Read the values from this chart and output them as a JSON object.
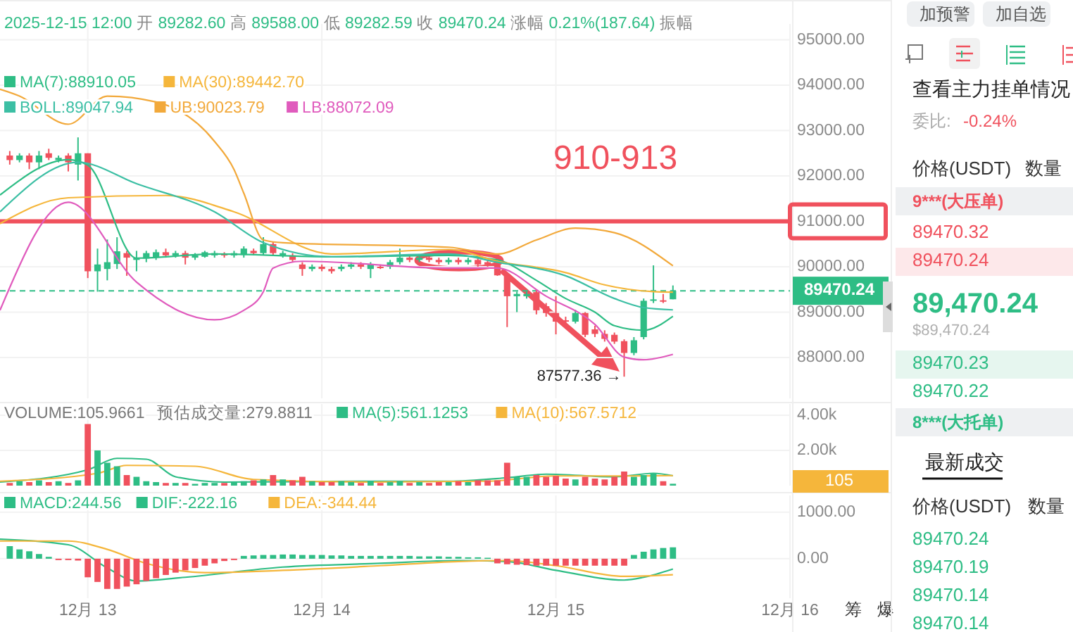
{
  "chart_data": [
    {
      "type": "candlestick",
      "subtitle": "2025-12-15 12:00 开 89282.60 高 89588.00 低 89282.59 收 89470.24 涨幅 0.21%(187.64) 振幅",
      "x": [
        "2025-12-12T16:00",
        "2025-12-12T17:00",
        "2025-12-12T18:00",
        "2025-12-12T19:00",
        "2025-12-12T20:00",
        "2025-12-12T21:00",
        "2025-12-12T22:00",
        "2025-12-12T23:00",
        "2025-12-13T00:00",
        "2025-12-13T01:00",
        "2025-12-13T02:00",
        "2025-12-13T03:00",
        "2025-12-13T04:00",
        "2025-12-13T05:00",
        "2025-12-13T06:00",
        "2025-12-13T07:00",
        "2025-12-13T08:00",
        "2025-12-13T09:00",
        "2025-12-13T10:00",
        "2025-12-13T11:00",
        "2025-12-13T12:00",
        "2025-12-13T13:00",
        "2025-12-13T14:00",
        "2025-12-13T15:00",
        "2025-12-13T16:00",
        "2025-12-13T17:00",
        "2025-12-13T18:00",
        "2025-12-13T19:00",
        "2025-12-13T20:00",
        "2025-12-13T21:00",
        "2025-12-13T22:00",
        "2025-12-13T23:00",
        "2025-12-14T00:00",
        "2025-12-14T01:00",
        "2025-12-14T02:00",
        "2025-12-14T03:00",
        "2025-12-14T04:00",
        "2025-12-14T05:00",
        "2025-12-14T06:00",
        "2025-12-14T07:00",
        "2025-12-14T08:00",
        "2025-12-14T09:00",
        "2025-12-14T10:00",
        "2025-12-14T11:00",
        "2025-12-14T12:00",
        "2025-12-14T13:00",
        "2025-12-14T14:00",
        "2025-12-14T15:00",
        "2025-12-14T16:00",
        "2025-12-14T17:00",
        "2025-12-14T18:00",
        "2025-12-14T19:00",
        "2025-12-14T20:00",
        "2025-12-14T21:00",
        "2025-12-14T22:00",
        "2025-12-14T23:00",
        "2025-12-15T00:00",
        "2025-12-15T01:00",
        "2025-12-15T02:00",
        "2025-12-15T03:00",
        "2025-12-15T04:00",
        "2025-12-15T05:00",
        "2025-12-15T06:00",
        "2025-12-15T07:00",
        "2025-12-15T08:00",
        "2025-12-15T09:00",
        "2025-12-15T10:00",
        "2025-12-15T11:00",
        "2025-12-15T12:00"
      ],
      "ohlc": [
        [
          92450,
          92550,
          92250,
          92350
        ],
        [
          92350,
          92500,
          92300,
          92450
        ],
        [
          92450,
          92500,
          92150,
          92300
        ],
        [
          92300,
          92550,
          92150,
          92450
        ],
        [
          92500,
          92600,
          92350,
          92400
        ],
        [
          92350,
          92450,
          92300,
          92400
        ],
        [
          92450,
          92500,
          92100,
          92300
        ],
        [
          92250,
          92850,
          91900,
          92500
        ],
        [
          92500,
          92500,
          89750,
          89900
        ],
        [
          89900,
          90400,
          89450,
          90050
        ],
        [
          89950,
          90600,
          89700,
          90100
        ],
        [
          90060,
          90650,
          89950,
          90340
        ],
        [
          90300,
          90350,
          89800,
          90200
        ],
        [
          90150,
          90350,
          89900,
          90200
        ],
        [
          90180,
          90350,
          90100,
          90300
        ],
        [
          90200,
          90380,
          90150,
          90320
        ],
        [
          90320,
          90400,
          90200,
          90250
        ],
        [
          90250,
          90350,
          90200,
          90300
        ],
        [
          90300,
          90350,
          90050,
          90200
        ],
        [
          90200,
          90300,
          90150,
          90250
        ],
        [
          90220,
          90350,
          90200,
          90320
        ],
        [
          90250,
          90350,
          90200,
          90300
        ],
        [
          90280,
          90320,
          90200,
          90250
        ],
        [
          90250,
          90350,
          90200,
          90300
        ],
        [
          90260,
          90450,
          90200,
          90400
        ],
        [
          90350,
          90400,
          90250,
          90300
        ],
        [
          90300,
          90650,
          90250,
          90500
        ],
        [
          90500,
          90550,
          90250,
          90300
        ],
        [
          90250,
          90350,
          90200,
          90300
        ],
        [
          90250,
          90300,
          90100,
          90150
        ],
        [
          90050,
          90100,
          89800,
          89950
        ],
        [
          89950,
          90050,
          89900,
          90000
        ],
        [
          90000,
          90050,
          89900,
          89950
        ],
        [
          89950,
          90000,
          89850,
          89900
        ],
        [
          89950,
          90050,
          89900,
          90000
        ],
        [
          90000,
          90100,
          89950,
          90050
        ],
        [
          90050,
          90100,
          89950,
          90000
        ],
        [
          89950,
          90100,
          89750,
          90050
        ],
        [
          90000,
          90050,
          89950,
          89980
        ],
        [
          90000,
          90150,
          89950,
          90100
        ],
        [
          90100,
          90400,
          90050,
          90200
        ],
        [
          90200,
          90250,
          90100,
          90150
        ],
        [
          90150,
          90250,
          90100,
          90200
        ],
        [
          90200,
          90250,
          90100,
          90150
        ],
        [
          90150,
          90200,
          90050,
          90100
        ],
        [
          90100,
          90200,
          90050,
          90150
        ],
        [
          90150,
          90200,
          90050,
          90100
        ],
        [
          90100,
          90200,
          90050,
          90150
        ],
        [
          90150,
          90200,
          90000,
          90050
        ],
        [
          90100,
          90150,
          90000,
          90050
        ],
        [
          90030,
          90100,
          89800,
          89810
        ],
        [
          89810,
          89850,
          88670,
          89350
        ],
        [
          89350,
          89450,
          89000,
          89400
        ],
        [
          89350,
          89450,
          89300,
          89400
        ],
        [
          89440,
          89500,
          88950,
          89040
        ],
        [
          89130,
          89200,
          88900,
          88980
        ],
        [
          88980,
          89350,
          88510,
          88790
        ],
        [
          88820,
          88900,
          88700,
          88790
        ],
        [
          88790,
          89050,
          88750,
          88980
        ],
        [
          88980,
          89000,
          88450,
          88500
        ],
        [
          88620,
          88700,
          88450,
          88520
        ],
        [
          88520,
          88600,
          88350,
          88410
        ],
        [
          88500,
          88550,
          88300,
          88350
        ],
        [
          88360,
          88400,
          87577.36,
          88100
        ],
        [
          88100,
          88450,
          88050,
          88380
        ],
        [
          88450,
          89300,
          88400,
          89250
        ],
        [
          89250,
          90030,
          89200,
          89280
        ],
        [
          89260,
          89400,
          89200,
          89230
        ],
        [
          89282.6,
          89588.0,
          89282.59,
          89470.24
        ]
      ],
      "series": [
        {
          "type": "line",
          "name": "MA(7):88910.05",
          "color": "#2ebd85",
          "x": [
            "2025-12-12T15:00",
            "2025-12-12T22:00",
            "2025-12-13T00:00",
            "2025-12-13T05:00",
            "2025-12-13T13:00",
            "2025-12-14T01:00",
            "2025-12-14T13:00",
            "2025-12-14T18:00",
            "2025-12-14T22:00",
            "2025-12-15T01:00",
            "2025-12-15T04:00",
            "2025-12-15T06:00",
            "2025-12-15T09:00",
            "2025-12-15T12:00"
          ],
          "values": [
            91580,
            92360,
            92240,
            90190,
            90280,
            90220,
            90250,
            90150,
            89700,
            89300,
            89000,
            88700,
            88600,
            88910
          ]
        },
        {
          "type": "line",
          "name": "MA(30):89442.70",
          "color": "#f5b63b",
          "x": [
            "2025-12-12T15:00",
            "2025-12-12T22:00",
            "2025-12-13T08:00",
            "2025-12-13T15:00",
            "2025-12-14T01:00",
            "2025-12-14T13:00",
            "2025-12-14T18:00",
            "2025-12-15T01:00",
            "2025-12-15T05:00",
            "2025-12-15T10:00",
            "2025-12-15T12:00"
          ],
          "values": [
            90950,
            91520,
            91570,
            91210,
            90280,
            90380,
            90120,
            89870,
            89600,
            89450,
            89440
          ]
        },
        {
          "type": "line",
          "name": "BOLL:89047.94",
          "color": "#3cbfa4",
          "x": [
            "2025-12-12T15:00",
            "2025-12-12T23:00",
            "2025-12-13T05:00",
            "2025-12-13T13:00",
            "2025-12-13T18:00",
            "2025-12-14T01:00",
            "2025-12-14T13:00",
            "2025-12-14T18:00",
            "2025-12-15T01:00",
            "2025-12-15T06:00",
            "2025-12-15T09:00",
            "2025-12-15T12:00"
          ],
          "values": [
            91210,
            92300,
            91830,
            91210,
            90530,
            90220,
            90280,
            90100,
            89800,
            89300,
            89100,
            89050
          ]
        },
        {
          "type": "line",
          "name": "UB:90023.79",
          "color": "#f2a93b",
          "x": [
            "2025-12-12T15:00",
            "2025-12-12T17:00",
            "2025-12-12T22:00",
            "2025-12-13T02:00",
            "2025-12-13T07:00",
            "2025-12-13T13:00",
            "2025-12-13T15:00",
            "2025-12-13T16:00",
            "2025-12-13T18:00",
            "2025-12-13T20:00",
            "2025-12-14T13:00",
            "2025-12-14T18:00",
            "2025-12-14T22:00",
            "2025-12-15T02:00",
            "2025-12-15T06:00",
            "2025-12-15T12:00"
          ],
          "values": [
            93910,
            93760,
            93140,
            93760,
            93630,
            92760,
            92140,
            91620,
            90590,
            90530,
            90430,
            90280,
            90590,
            90850,
            90750,
            90020
          ]
        },
        {
          "type": "line",
          "name": "LB:88072.09",
          "color": "#e05bbd",
          "x": [
            "2025-12-12T15:00",
            "2025-12-12T22:00",
            "2025-12-13T05:00",
            "2025-12-13T13:00",
            "2025-12-13T16:00",
            "2025-12-13T18:00",
            "2025-12-13T19:00",
            "2025-12-13T22:00",
            "2025-12-14T13:00",
            "2025-12-14T18:00",
            "2025-12-14T23:00",
            "2025-12-15T04:00",
            "2025-12-15T07:00",
            "2025-12-15T09:00",
            "2025-12-15T12:00"
          ],
          "values": [
            89040,
            91420,
            89660,
            88830,
            89040,
            89450,
            89970,
            90120,
            89970,
            89970,
            89350,
            88730,
            88010,
            87950,
            88070
          ]
        }
      ],
      "xlim": [
        "2025-12-12T15:00",
        "2025-12-16T00:00"
      ],
      "xticks": [
        {
          "value": "2025-12-13",
          "label": null
        },
        {
          "value": "2025-12-14",
          "label": null
        },
        {
          "value": "2025-12-15",
          "label": null
        },
        {
          "value": "2025-12-16",
          "label": null
        }
      ],
      "ylim": [
        87100,
        95350
      ],
      "yticks": [
        {
          "value": 88000,
          "label": "88000.00"
        },
        {
          "value": 89000,
          "label": "89000.00"
        },
        {
          "value": 90000,
          "label": "90000.00"
        },
        {
          "value": 91000,
          "label": "91000.00"
        },
        {
          "value": 92000,
          "label": "92000.00"
        },
        {
          "value": 93000,
          "label": "93000.00"
        },
        {
          "value": 94000,
          "label": "94000.00"
        },
        {
          "value": 95000,
          "label": "95000.00"
        }
      ],
      "ref_lines": [
        {
          "axis": "y",
          "value": 91000,
          "color": "#f0515d",
          "line_style": "solid"
        },
        {
          "axis": "y",
          "value": 89470.24,
          "label": "89470.24",
          "color": "#2ebd85",
          "line_style": "dashed"
        }
      ],
      "annotations": [
        "910-913",
        {
          "text": "87577.36 →",
          "x": "2025-12-15T07:00",
          "y": 87577.36
        }
      ],
      "grid": true,
      "legend": "top left",
      "tick_labels": "y"
    },
    {
      "type": "bar",
      "x": [
        "2025-12-12T16:00",
        "2025-12-12T17:00",
        "2025-12-12T18:00",
        "2025-12-12T19:00",
        "2025-12-12T20:00",
        "2025-12-12T21:00",
        "2025-12-12T22:00",
        "2025-12-12T23:00",
        "2025-12-13T00:00",
        "2025-12-13T01:00",
        "2025-12-13T02:00",
        "2025-12-13T03:00",
        "2025-12-13T04:00",
        "2025-12-13T05:00",
        "2025-12-13T06:00",
        "2025-12-13T07:00",
        "2025-12-13T08:00",
        "2025-12-13T09:00",
        "2025-12-13T10:00",
        "2025-12-13T11:00",
        "2025-12-13T12:00",
        "2025-12-13T13:00",
        "2025-12-13T14:00",
        "2025-12-13T15:00",
        "2025-12-13T16:00",
        "2025-12-13T17:00",
        "2025-12-13T18:00",
        "2025-12-13T19:00",
        "2025-12-13T20:00",
        "2025-12-13T21:00",
        "2025-12-13T22:00",
        "2025-12-13T23:00",
        "2025-12-14T00:00",
        "2025-12-14T01:00",
        "2025-12-14T02:00",
        "2025-12-14T03:00",
        "2025-12-14T04:00",
        "2025-12-14T05:00",
        "2025-12-14T06:00",
        "2025-12-14T07:00",
        "2025-12-14T08:00",
        "2025-12-14T09:00",
        "2025-12-14T10:00",
        "2025-12-14T11:00",
        "2025-12-14T12:00",
        "2025-12-14T13:00",
        "2025-12-14T14:00",
        "2025-12-14T15:00",
        "2025-12-14T16:00",
        "2025-12-14T17:00",
        "2025-12-14T18:00",
        "2025-12-14T19:00",
        "2025-12-14T20:00",
        "2025-12-14T21:00",
        "2025-12-14T22:00",
        "2025-12-14T23:00",
        "2025-12-15T00:00",
        "2025-12-15T01:00",
        "2025-12-15T02:00",
        "2025-12-15T03:00",
        "2025-12-15T04:00",
        "2025-12-15T05:00",
        "2025-12-15T06:00",
        "2025-12-15T07:00",
        "2025-12-15T08:00",
        "2025-12-15T09:00",
        "2025-12-15T10:00",
        "2025-12-15T11:00",
        "2025-12-15T12:00"
      ],
      "series": [
        {
          "type": "bar",
          "values": [
            150,
            250,
            200,
            300,
            200,
            250,
            150,
            300,
            3500,
            2000,
            1300,
            1100,
            600,
            500,
            250,
            200,
            150,
            150,
            150,
            100,
            150,
            150,
            150,
            200,
            250,
            300,
            350,
            600,
            350,
            300,
            500,
            250,
            200,
            200,
            250,
            200,
            150,
            250,
            150,
            200,
            250,
            150,
            200,
            150,
            200,
            200,
            250,
            200,
            300,
            300,
            300,
            1300,
            500,
            500,
            600,
            500,
            550,
            400,
            350,
            500,
            400,
            350,
            500,
            800,
            500,
            600,
            700,
            250,
            106
          ],
          "colors": [
            "#f0515d",
            "#2ebd85",
            "#f0515d",
            "#2ebd85",
            "#f0515d",
            "#2ebd85",
            "#f0515d",
            "#2ebd85",
            "#f0515d",
            "#2ebd85",
            "#2ebd85",
            "#2ebd85",
            "#f0515d",
            "#2ebd85",
            "#2ebd85",
            "#2ebd85",
            "#f0515d",
            "#2ebd85",
            "#f0515d",
            "#2ebd85",
            "#2ebd85",
            "#2ebd85",
            "#f0515d",
            "#2ebd85",
            "#2ebd85",
            "#f0515d",
            "#2ebd85",
            "#f0515d",
            "#2ebd85",
            "#f0515d",
            "#f0515d",
            "#2ebd85",
            "#f0515d",
            "#f0515d",
            "#2ebd85",
            "#2ebd85",
            "#f0515d",
            "#2ebd85",
            "#f0515d",
            "#2ebd85",
            "#2ebd85",
            "#f0515d",
            "#2ebd85",
            "#f0515d",
            "#f0515d",
            "#2ebd85",
            "#f0515d",
            "#2ebd85",
            "#f0515d",
            "#f0515d",
            "#f0515d",
            "#f0515d",
            "#2ebd85",
            "#2ebd85",
            "#f0515d",
            "#f0515d",
            "#f0515d",
            "#f0515d",
            "#2ebd85",
            "#f0515d",
            "#f0515d",
            "#f0515d",
            "#f0515d",
            "#f0515d",
            "#2ebd85",
            "#2ebd85",
            "#2ebd85",
            "#f0515d",
            "#2ebd85"
          ]
        },
        {
          "type": "line",
          "name": "MA(5):561.1253",
          "color": "#2ebd85",
          "x": [
            "2025-12-12T15:00",
            "2025-12-13T00:00",
            "2025-12-13T03:00",
            "2025-12-13T06:00",
            "2025-12-13T09:00",
            "2025-12-13T14:00",
            "2025-12-14T04:00",
            "2025-12-14T13:00",
            "2025-12-14T19:00",
            "2025-12-14T23:00",
            "2025-12-15T06:00",
            "2025-12-15T10:00",
            "2025-12-15T12:00"
          ],
          "values": [
            200,
            900,
            1550,
            1500,
            500,
            200,
            250,
            250,
            450,
            650,
            500,
            700,
            560
          ]
        },
        {
          "type": "line",
          "name": "MA(10):567.5712",
          "color": "#f5b63b",
          "x": [
            "2025-12-12T15:00",
            "2025-12-13T01:00",
            "2025-12-13T04:00",
            "2025-12-13T11:00",
            "2025-12-13T17:00",
            "2025-12-14T05:00",
            "2025-12-14T17:00",
            "2025-12-15T00:00",
            "2025-12-15T08:00",
            "2025-12-15T12:00"
          ],
          "values": [
            250,
            700,
            1150,
            1100,
            350,
            200,
            250,
            550,
            550,
            570
          ]
        }
      ],
      "xlim": [
        "2025-12-12T15:00",
        "2025-12-16T00:00"
      ],
      "xticks": [
        {
          "value": "2025-12-13",
          "label": null
        },
        {
          "value": "2025-12-14",
          "label": null
        },
        {
          "value": "2025-12-15",
          "label": null
        },
        {
          "value": "2025-12-16",
          "label": null
        }
      ],
      "ylim": [
        0,
        4640
      ],
      "yticks": [
        {
          "value": 2000,
          "label": "2.00k"
        },
        {
          "value": 4000,
          "label": "4.00k"
        }
      ],
      "annotations": [
        "VOLUME:105.9661",
        "预估成交量:279.8811",
        "105"
      ],
      "grid": true,
      "legend": "top",
      "tick_labels": "y"
    },
    {
      "type": "bar",
      "x": [
        "2025-12-12T16:00",
        "2025-12-12T17:00",
        "2025-12-12T18:00",
        "2025-12-12T19:00",
        "2025-12-12T20:00",
        "2025-12-12T21:00",
        "2025-12-12T22:00",
        "2025-12-12T23:00",
        "2025-12-13T00:00",
        "2025-12-13T01:00",
        "2025-12-13T02:00",
        "2025-12-13T03:00",
        "2025-12-13T04:00",
        "2025-12-13T05:00",
        "2025-12-13T06:00",
        "2025-12-13T07:00",
        "2025-12-13T08:00",
        "2025-12-13T09:00",
        "2025-12-13T10:00",
        "2025-12-13T11:00",
        "2025-12-13T12:00",
        "2025-12-13T13:00",
        "2025-12-13T14:00",
        "2025-12-13T15:00",
        "2025-12-13T16:00",
        "2025-12-13T17:00",
        "2025-12-13T18:00",
        "2025-12-13T19:00",
        "2025-12-13T20:00",
        "2025-12-13T21:00",
        "2025-12-13T22:00",
        "2025-12-13T23:00",
        "2025-12-14T00:00",
        "2025-12-14T01:00",
        "2025-12-14T02:00",
        "2025-12-14T03:00",
        "2025-12-14T04:00",
        "2025-12-14T05:00",
        "2025-12-14T06:00",
        "2025-12-14T07:00",
        "2025-12-14T08:00",
        "2025-12-14T09:00",
        "2025-12-14T10:00",
        "2025-12-14T11:00",
        "2025-12-14T12:00",
        "2025-12-14T13:00",
        "2025-12-14T14:00",
        "2025-12-14T15:00",
        "2025-12-14T16:00",
        "2025-12-14T17:00",
        "2025-12-14T18:00",
        "2025-12-14T19:00",
        "2025-12-14T20:00",
        "2025-12-14T21:00",
        "2025-12-14T22:00",
        "2025-12-14T23:00",
        "2025-12-15T00:00",
        "2025-12-15T01:00",
        "2025-12-15T02:00",
        "2025-12-15T03:00",
        "2025-12-15T04:00",
        "2025-12-15T05:00",
        "2025-12-15T06:00",
        "2025-12-15T07:00",
        "2025-12-15T08:00",
        "2025-12-15T09:00",
        "2025-12-15T10:00",
        "2025-12-15T11:00",
        "2025-12-15T12:00"
      ],
      "series": [
        {
          "type": "bar",
          "name": "MACD:244.56",
          "color": "#2ebd85",
          "values": [
            270,
            200,
            160,
            100,
            40,
            -30,
            -30,
            -40,
            -400,
            -500,
            -650,
            -650,
            -600,
            -550,
            -480,
            -420,
            -350,
            -300,
            -250,
            -200,
            -150,
            -100,
            -50,
            -30,
            60,
            70,
            80,
            80,
            90,
            90,
            80,
            80,
            80,
            70,
            70,
            60,
            60,
            60,
            60,
            60,
            60,
            60,
            50,
            50,
            50,
            40,
            40,
            30,
            30,
            20,
            -100,
            -120,
            -130,
            -140,
            -150,
            -150,
            -150,
            -150,
            -150,
            -150,
            -150,
            -150,
            -150,
            -150,
            80,
            150,
            200,
            230,
            244.56
          ],
          "colors": [
            "#2ebd85",
            "#2ebd85",
            "#2ebd85",
            "#2ebd85",
            "#2ebd85",
            "#f0515d",
            "#f0515d",
            "#f0515d",
            "#f0515d",
            "#f0515d",
            "#f0515d",
            "#f0515d",
            "#f0515d",
            "#f0515d",
            "#f0515d",
            "#f0515d",
            "#f0515d",
            "#f0515d",
            "#f0515d",
            "#f0515d",
            "#f0515d",
            "#f0515d",
            "#f0515d",
            "#f0515d",
            "#2ebd85",
            "#2ebd85",
            "#2ebd85",
            "#2ebd85",
            "#2ebd85",
            "#2ebd85",
            "#2ebd85",
            "#2ebd85",
            "#2ebd85",
            "#2ebd85",
            "#2ebd85",
            "#2ebd85",
            "#2ebd85",
            "#2ebd85",
            "#2ebd85",
            "#2ebd85",
            "#2ebd85",
            "#2ebd85",
            "#2ebd85",
            "#2ebd85",
            "#2ebd85",
            "#2ebd85",
            "#2ebd85",
            "#2ebd85",
            "#2ebd85",
            "#2ebd85",
            "#f0515d",
            "#f0515d",
            "#f0515d",
            "#f0515d",
            "#f0515d",
            "#f0515d",
            "#f0515d",
            "#f0515d",
            "#f0515d",
            "#f0515d",
            "#f0515d",
            "#f0515d",
            "#f0515d",
            "#f0515d",
            "#2ebd85",
            "#2ebd85",
            "#2ebd85",
            "#2ebd85",
            "#2ebd85"
          ]
        },
        {
          "type": "line",
          "name": "DIF:-222.16",
          "color": "#2ebd85",
          "x": [
            "2025-12-12T15:00",
            "2025-12-12T22:00",
            "2025-12-13T02:00",
            "2025-12-13T05:00",
            "2025-12-13T10:00",
            "2025-12-13T20:00",
            "2025-12-14T06:00",
            "2025-12-14T14:00",
            "2025-12-14T19:00",
            "2025-12-15T00:00",
            "2025-12-15T07:00",
            "2025-12-15T09:00",
            "2025-12-15T12:00"
          ],
          "values": [
            420,
            300,
            -200,
            -480,
            -400,
            -180,
            -100,
            -40,
            -60,
            -250,
            -460,
            -400,
            -222.16
          ]
        },
        {
          "type": "line",
          "name": "DEA:-344.44",
          "color": "#f5b63b",
          "x": [
            "2025-12-12T15:00",
            "2025-12-12T22:00",
            "2025-12-13T02:00",
            "2025-12-13T06:00",
            "2025-12-13T12:00",
            "2025-12-13T20:00",
            "2025-12-14T06:00",
            "2025-12-14T14:00",
            "2025-12-14T19:00",
            "2025-12-15T00:00",
            "2025-12-15T07:00",
            "2025-12-15T12:00"
          ],
          "values": [
            380,
            380,
            200,
            -100,
            -300,
            -250,
            -150,
            -60,
            -40,
            -150,
            -380,
            -344.44
          ]
        }
      ],
      "xlim": [
        "2025-12-12T15:00",
        "2025-12-16T00:00"
      ],
      "xticks": [
        {
          "value": "2025-12-13",
          "label": "12月 13"
        },
        {
          "value": "2025-12-14",
          "label": "12月 14"
        },
        {
          "value": "2025-12-15",
          "label": "12月 15"
        },
        {
          "value": "2025-12-16",
          "label": "12月 16"
        }
      ],
      "ylim": [
        -850,
        1360
      ],
      "yticks": [
        {
          "value": 0,
          "label": "0.00"
        },
        {
          "value": 1000,
          "label": "1000.00"
        }
      ],
      "annotations": [
        "筹",
        "爆"
      ],
      "grid": true,
      "legend": "top left"
    },
    {
      "type": "other",
      "annotations": [
        "加预警",
        "加自选",
        "查看主力挂单情况",
        "委比:",
        "-0.24%",
        "价格(USDT)",
        "数量",
        "9***(大压单)",
        "89470.32",
        "89470.24",
        "89,470.24",
        "$89,470.24",
        "89470.23",
        "89470.22",
        "8***(大托单)",
        "最新成交",
        "价格(USDT)",
        "数量",
        "89470.24",
        "89470.19",
        "89470.14",
        "89470.14"
      ]
    }
  ]
}
